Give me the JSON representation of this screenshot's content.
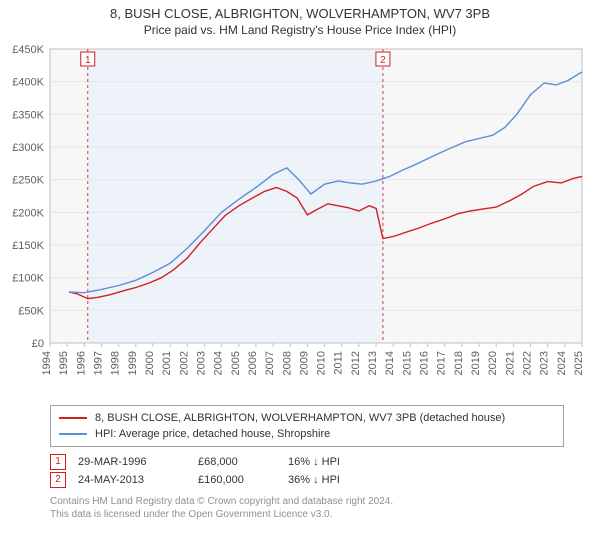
{
  "title_line1": "8, BUSH CLOSE, ALBRIGHTON, WOLVERHAMPTON, WV7 3PB",
  "title_line2": "Price paid vs. HM Land Registry's House Price Index (HPI)",
  "chart": {
    "type": "line",
    "plot_background": "#f7f7f7",
    "page_background": "#ffffff",
    "grid_color": "#e6e6e6",
    "axis_color": "#c0c0c0",
    "label_color": "#606060",
    "label_fontsize": 11,
    "xlim": [
      1994,
      2025
    ],
    "ylim": [
      0,
      450000
    ],
    "ytick_step": 50000,
    "yticks": [
      {
        "v": 0,
        "label": "£0"
      },
      {
        "v": 50000,
        "label": "£50K"
      },
      {
        "v": 100000,
        "label": "£100K"
      },
      {
        "v": 150000,
        "label": "£150K"
      },
      {
        "v": 200000,
        "label": "£200K"
      },
      {
        "v": 250000,
        "label": "£250K"
      },
      {
        "v": 300000,
        "label": "£300K"
      },
      {
        "v": 350000,
        "label": "£350K"
      },
      {
        "v": 400000,
        "label": "£400K"
      },
      {
        "v": 450000,
        "label": "£450K"
      }
    ],
    "xticks": [
      1994,
      1995,
      1996,
      1997,
      1998,
      1999,
      2000,
      2001,
      2002,
      2003,
      2004,
      2005,
      2006,
      2007,
      2008,
      2009,
      2010,
      2011,
      2012,
      2013,
      2014,
      2015,
      2016,
      2017,
      2018,
      2019,
      2020,
      2021,
      2022,
      2023,
      2024,
      2025
    ],
    "flag_band_color": "#eef3fa",
    "flag_band_start": 1996.2,
    "flag_band_end": 2013.4,
    "flag_dash_color": "#d04040",
    "series": [
      {
        "name": "property",
        "color": "#d02020",
        "line_width": 1.4,
        "points": [
          [
            1995.1,
            78000
          ],
          [
            1995.6,
            75000
          ],
          [
            1996.2,
            68000
          ],
          [
            1996.8,
            70000
          ],
          [
            1997.5,
            74000
          ],
          [
            1998.3,
            80000
          ],
          [
            1999.0,
            85000
          ],
          [
            1999.8,
            92000
          ],
          [
            2000.5,
            100000
          ],
          [
            2001.2,
            112000
          ],
          [
            2002.0,
            130000
          ],
          [
            2002.8,
            155000
          ],
          [
            2003.5,
            175000
          ],
          [
            2004.2,
            195000
          ],
          [
            2005.0,
            210000
          ],
          [
            2005.8,
            222000
          ],
          [
            2006.5,
            232000
          ],
          [
            2007.2,
            238000
          ],
          [
            2007.8,
            232000
          ],
          [
            2008.4,
            222000
          ],
          [
            2009.0,
            196000
          ],
          [
            2009.6,
            205000
          ],
          [
            2010.2,
            213000
          ],
          [
            2010.8,
            210000
          ],
          [
            2011.4,
            207000
          ],
          [
            2012.0,
            202000
          ],
          [
            2012.6,
            210000
          ],
          [
            2013.0,
            206000
          ],
          [
            2013.4,
            160000
          ],
          [
            2014.0,
            163000
          ],
          [
            2014.8,
            170000
          ],
          [
            2015.5,
            176000
          ],
          [
            2016.2,
            183000
          ],
          [
            2017.0,
            190000
          ],
          [
            2017.8,
            198000
          ],
          [
            2018.5,
            202000
          ],
          [
            2019.2,
            205000
          ],
          [
            2020.0,
            208000
          ],
          [
            2020.8,
            218000
          ],
          [
            2021.5,
            228000
          ],
          [
            2022.2,
            240000
          ],
          [
            2023.0,
            247000
          ],
          [
            2023.8,
            245000
          ],
          [
            2024.5,
            252000
          ],
          [
            2025.0,
            255000
          ]
        ]
      },
      {
        "name": "hpi",
        "color": "#5b8fd6",
        "line_width": 1.4,
        "points": [
          [
            1995.1,
            78000
          ],
          [
            1996.0,
            77000
          ],
          [
            1997.0,
            82000
          ],
          [
            1998.0,
            88000
          ],
          [
            1999.0,
            96000
          ],
          [
            2000.0,
            108000
          ],
          [
            2001.0,
            122000
          ],
          [
            2002.0,
            145000
          ],
          [
            2003.0,
            172000
          ],
          [
            2004.0,
            200000
          ],
          [
            2005.0,
            220000
          ],
          [
            2006.0,
            238000
          ],
          [
            2007.0,
            258000
          ],
          [
            2007.8,
            268000
          ],
          [
            2008.5,
            250000
          ],
          [
            2009.2,
            228000
          ],
          [
            2010.0,
            243000
          ],
          [
            2010.8,
            248000
          ],
          [
            2011.5,
            245000
          ],
          [
            2012.2,
            243000
          ],
          [
            2013.0,
            248000
          ],
          [
            2013.8,
            255000
          ],
          [
            2014.5,
            264000
          ],
          [
            2015.2,
            272000
          ],
          [
            2016.0,
            282000
          ],
          [
            2016.8,
            292000
          ],
          [
            2017.5,
            300000
          ],
          [
            2018.2,
            308000
          ],
          [
            2019.0,
            313000
          ],
          [
            2019.8,
            318000
          ],
          [
            2020.5,
            330000
          ],
          [
            2021.2,
            350000
          ],
          [
            2022.0,
            380000
          ],
          [
            2022.8,
            398000
          ],
          [
            2023.5,
            395000
          ],
          [
            2024.2,
            402000
          ],
          [
            2025.0,
            415000
          ]
        ]
      }
    ],
    "flags": [
      {
        "n": "1",
        "x": 1996.2,
        "color": "#d02020"
      },
      {
        "n": "2",
        "x": 2013.4,
        "color": "#d02020"
      }
    ]
  },
  "legend": {
    "series1_label": "8, BUSH CLOSE, ALBRIGHTON, WOLVERHAMPTON, WV7 3PB (detached house)",
    "series1_color": "#d02020",
    "series2_label": "HPI: Average price, detached house, Shropshire",
    "series2_color": "#5b8fd6"
  },
  "sales": [
    {
      "flag": "1",
      "flag_color": "#d02020",
      "date": "29-MAR-1996",
      "price": "£68,000",
      "diff": "16% ↓ HPI"
    },
    {
      "flag": "2",
      "flag_color": "#d02020",
      "date": "24-MAY-2013",
      "price": "£160,000",
      "diff": "36% ↓ HPI"
    }
  ],
  "footer_line1": "Contains HM Land Registry data © Crown copyright and database right 2024.",
  "footer_line2": "This data is licensed under the Open Government Licence v3.0."
}
